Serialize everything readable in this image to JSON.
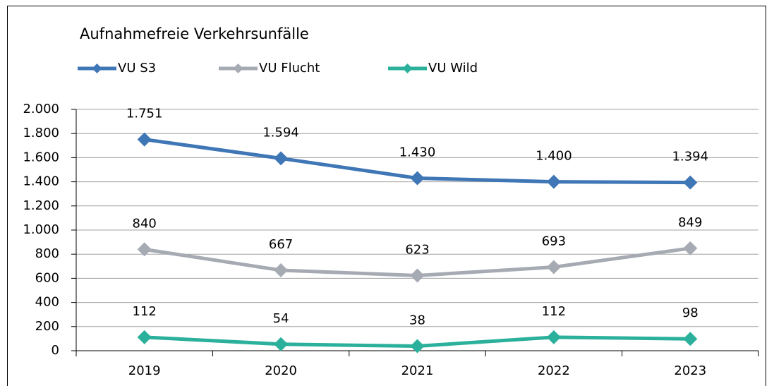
{
  "chart_data": {
    "type": "line",
    "title": "Aufnahmefreie Verkehrsunfälle",
    "categories": [
      "2019",
      "2020",
      "2021",
      "2022",
      "2023"
    ],
    "series": [
      {
        "name": "VU S3",
        "color": "#3f76b5",
        "values": [
          1751,
          1594,
          1430,
          1400,
          1394
        ],
        "value_labels": [
          "1.751",
          "1.594",
          "1.430",
          "1.400",
          "1.394"
        ]
      },
      {
        "name": "VU Flucht",
        "color": "#a6abb3",
        "values": [
          840,
          667,
          623,
          693,
          849
        ]
      },
      {
        "name": "VU Wild",
        "color": "#2ab09b",
        "values": [
          112,
          54,
          38,
          112,
          98
        ]
      }
    ],
    "ylim": [
      0,
      2000
    ],
    "yticks": [
      0,
      200,
      400,
      600,
      800,
      {
        "value": 1000,
        "label": "1.000"
      },
      {
        "value": 1200,
        "label": "1.200"
      },
      {
        "value": 1400,
        "label": "1.400"
      },
      {
        "value": 1600,
        "label": "1.600"
      },
      {
        "value": 1800,
        "label": "1.800"
      },
      {
        "value": 2000,
        "label": "2.000"
      }
    ],
    "grid": true,
    "legend": "top-left"
  }
}
